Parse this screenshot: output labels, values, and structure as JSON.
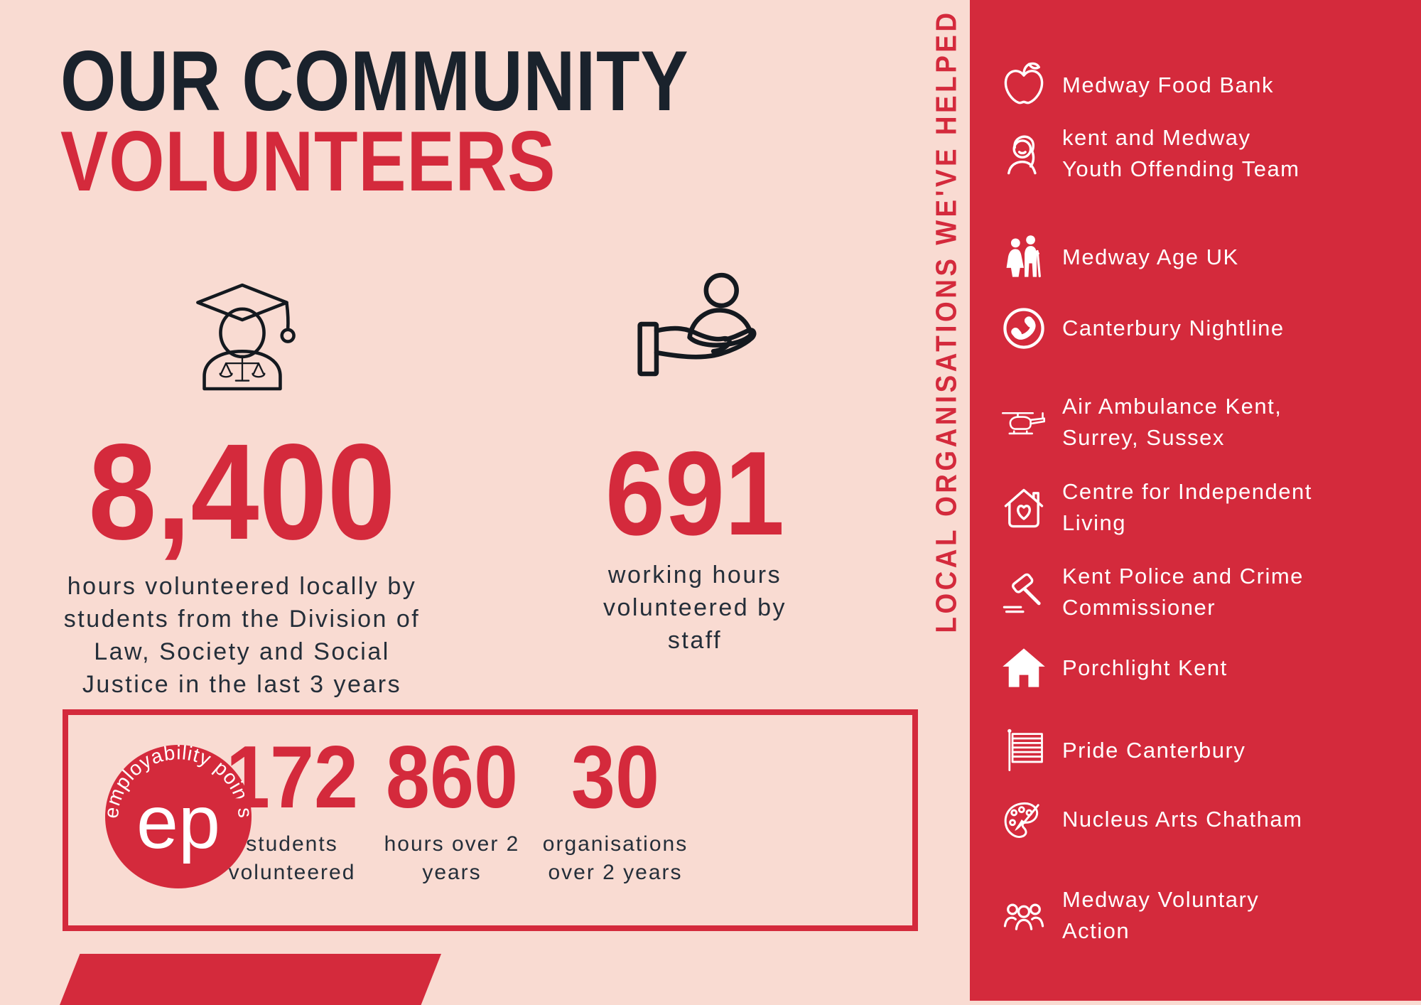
{
  "title": {
    "line1": "OUR COMMUNITY",
    "line2": "VOLUNTEERS"
  },
  "hero_stats": [
    {
      "icon": "graduate-scales-icon",
      "value": "8,400",
      "caption": "hours volunteered locally by\nstudents from the Division of\nLaw, Society and Social\nJustice in the last 3 years"
    },
    {
      "icon": "hand-person-icon",
      "value": "691",
      "caption": "working hours\nvolunteered by\nstaff"
    }
  ],
  "ep_box": {
    "logo": {
      "circle_text": "ep",
      "curved_text": "employability points"
    },
    "stats": [
      {
        "value": "172",
        "caption": "students\nvolunteered"
      },
      {
        "value": "860",
        "caption": "hours over 2\nyears"
      },
      {
        "value": "30",
        "caption": "organisations\nover 2 years"
      }
    ]
  },
  "sidebar": {
    "vertical_label": "LOCAL ORGANISATIONS WE'VE HELPED",
    "items": [
      {
        "icon": "apple-icon",
        "label": "Medway Food Bank"
      },
      {
        "icon": "girl-icon",
        "label": "kent and Medway\nYouth Offending Team"
      },
      {
        "icon": "elderly-couple-icon",
        "label": "Medway Age UK"
      },
      {
        "icon": "phone-icon",
        "label": "Canterbury Nightline"
      },
      {
        "icon": "helicopter-icon",
        "label": "Air Ambulance Kent,\nSurrey, Sussex"
      },
      {
        "icon": "house-heart-icon",
        "label": "Centre for Independent\nLiving"
      },
      {
        "icon": "gavel-icon",
        "label": "Kent Police and Crime\nCommissioner"
      },
      {
        "icon": "house-icon",
        "label": "Porchlight Kent"
      },
      {
        "icon": "flag-icon",
        "label": "Pride Canterbury"
      },
      {
        "icon": "palette-icon",
        "label": "Nucleus Arts Chatham"
      },
      {
        "icon": "people-icon",
        "label": "Medway Voluntary\nAction"
      }
    ]
  },
  "colors": {
    "background_pink": "#f9dbd2",
    "accent_red": "#d42a3c",
    "dark_navy": "#1a222c",
    "white": "#ffffff"
  }
}
